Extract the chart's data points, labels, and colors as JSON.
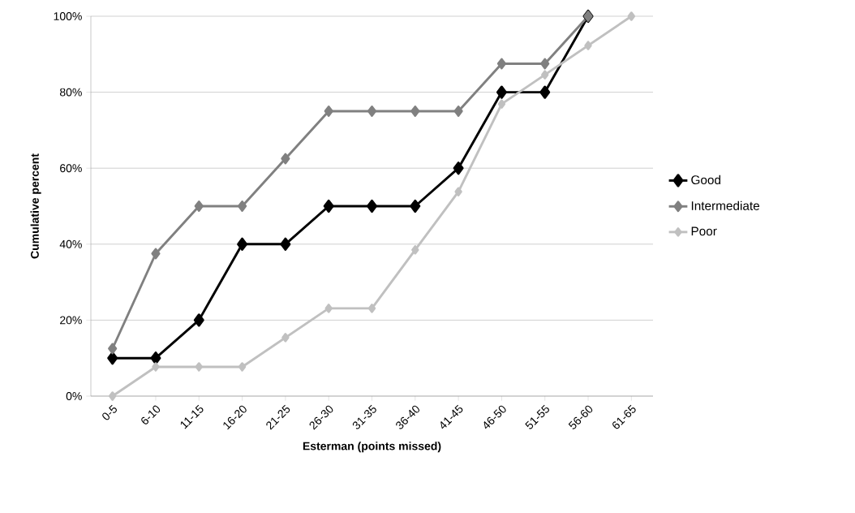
{
  "chart_data": {
    "type": "line",
    "xlabel": "Esterman (points missed)",
    "ylabel": "Cumulative percent",
    "categories": [
      "0-5",
      "6-10",
      "11-15",
      "16-20",
      "21-25",
      "26-30",
      "31-35",
      "36-40",
      "41-45",
      "46-50",
      "51-55",
      "56-60",
      "61-65"
    ],
    "series": [
      {
        "name": "Good",
        "color": "#000000",
        "values": [
          10,
          10,
          20,
          40,
          40,
          50,
          50,
          50,
          60,
          80,
          80,
          100,
          null
        ]
      },
      {
        "name": "Intermediate",
        "color": "#808080",
        "values": [
          12.5,
          37.5,
          50,
          50,
          62.5,
          75,
          75,
          75,
          75,
          87.5,
          87.5,
          100,
          null
        ]
      },
      {
        "name": "Poor",
        "color": "#c0c0c0",
        "values": [
          0,
          7.7,
          7.7,
          7.7,
          15.4,
          23.1,
          23.1,
          38.5,
          53.8,
          76.9,
          84.6,
          92.3,
          100
        ]
      }
    ],
    "ylim": [
      0,
      100
    ],
    "yticks": [
      {
        "value": 0,
        "label": "0%"
      },
      {
        "value": 20,
        "label": "20%"
      },
      {
        "value": 40,
        "label": "40%"
      },
      {
        "value": 60,
        "label": "60%"
      },
      {
        "value": 80,
        "label": "80%"
      },
      {
        "value": 100,
        "label": "100%"
      }
    ],
    "grid": "y",
    "legend": "right",
    "marker": "diamond",
    "line_style": "solid"
  }
}
